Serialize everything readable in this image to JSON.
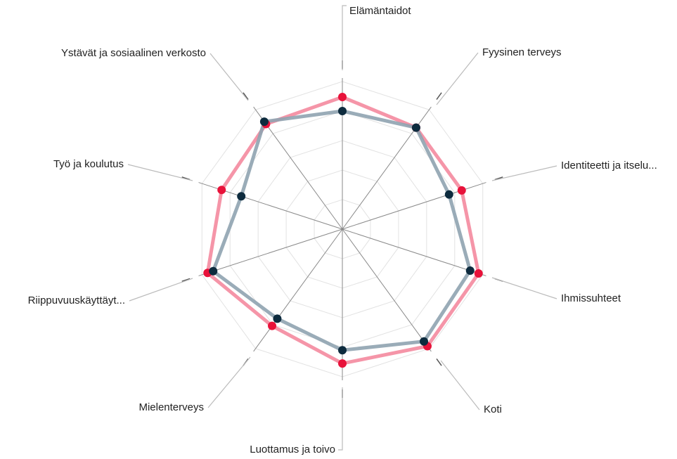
{
  "chart_data": {
    "type": "radar",
    "categories": [
      "Elämäntaidot",
      "Fyysinen terveys",
      "Identiteetti ja itselu...",
      "Ihmissuhteet",
      "Koti",
      "Luottamus ja toivo",
      "Mielenterveys",
      "Riippuvuuskäyttäyt...",
      "Työ ja koulutus",
      "Ystävät ja sosiaalinen verkosto"
    ],
    "series": [
      {
        "color": "#f48a9e",
        "marker_color": "#e8123a",
        "values": [
          8.95,
          8.5,
          8.5,
          9.7,
          9.8,
          9.1,
          8.1,
          9.6,
          8.6,
          8.8
        ]
      },
      {
        "color": "#8fa3b0",
        "marker_color": "#0d2b3e",
        "values": [
          8.0,
          8.5,
          7.6,
          9.1,
          9.4,
          8.2,
          7.5,
          9.2,
          7.2,
          9.0
        ]
      }
    ],
    "rlim": [
      0,
      10
    ],
    "rticks": [
      2,
      4,
      6,
      8,
      10
    ],
    "grid": true
  }
}
